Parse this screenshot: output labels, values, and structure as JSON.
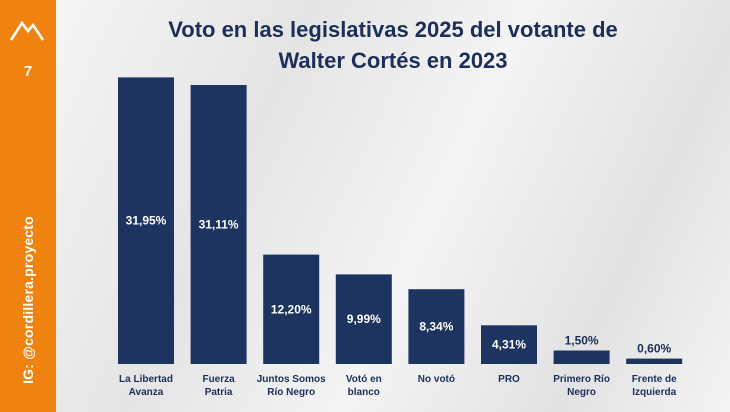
{
  "sidebar": {
    "page_number": "7",
    "handle": "IG: @cordillera.proyecto",
    "logo_icon": "mountain-icon"
  },
  "colors": {
    "sidebar": "#f0820f",
    "bar": "#1d3461",
    "text": "#1b2f5a",
    "background": "#ececec"
  },
  "chart_data": {
    "type": "bar",
    "title": "Voto en las legislativas 2025 del votante de Walter Cortés en 2023",
    "title_lines": [
      "Voto en las legislativas 2025 del votante de",
      "Walter Cortés en 2023"
    ],
    "categories": [
      [
        "La Libertad",
        "Avanza"
      ],
      [
        "Fuerza",
        "Patria"
      ],
      [
        "Juntos Somos",
        "Río Negro"
      ],
      [
        "Votó en",
        "blanco"
      ],
      [
        "No votó"
      ],
      [
        "PRO"
      ],
      [
        "Primero Río",
        "Negro"
      ],
      [
        "Frente de",
        "Izquierda"
      ]
    ],
    "values": [
      31.95,
      31.11,
      12.2,
      9.99,
      8.34,
      4.31,
      1.5,
      0.6
    ],
    "labels": [
      "31,95%",
      "31,11%",
      "12,20%",
      "9,99%",
      "8,34%",
      "4,31%",
      "1,50%",
      "0,60%"
    ],
    "xlabel": "",
    "ylabel": "",
    "ylim": [
      0,
      32
    ],
    "grid": false,
    "legend": "none"
  }
}
